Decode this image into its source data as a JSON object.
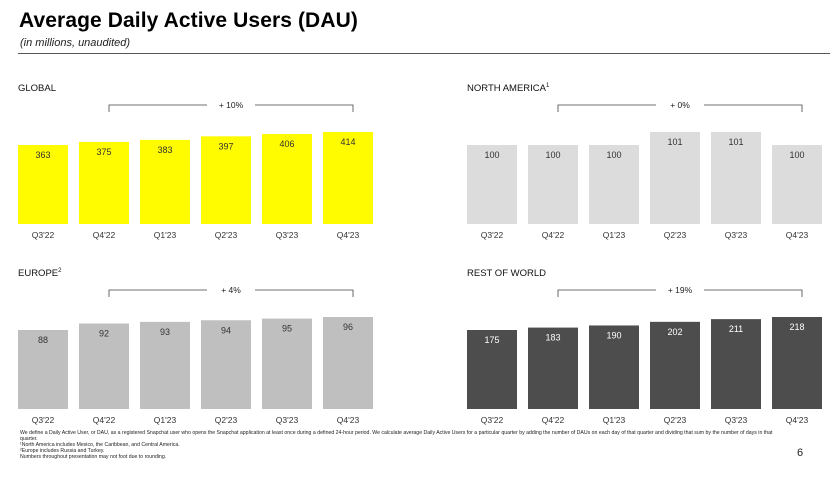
{
  "header": {
    "title": "Average Daily Active Users (DAU)",
    "subtitle": "(in millions, unaudited)"
  },
  "chart_data": [
    {
      "type": "bar",
      "title": "GLOBAL",
      "superscript": "",
      "categories": [
        "Q3'22",
        "Q4'22",
        "Q1'23",
        "Q2'23",
        "Q3'23",
        "Q4'23"
      ],
      "values": [
        363,
        375,
        383,
        397,
        406,
        414
      ],
      "growth_label": "+ 10%",
      "bar_color": "#FFFC00",
      "label_color": "#333333"
    },
    {
      "type": "bar",
      "title": "NORTH AMERICA",
      "superscript": "1",
      "categories": [
        "Q3'22",
        "Q4'22",
        "Q1'23",
        "Q2'23",
        "Q3'23",
        "Q4'23"
      ],
      "values": [
        100,
        100,
        100,
        101,
        101,
        100
      ],
      "growth_label": "+ 0%",
      "bar_color": "#DCDCDC",
      "label_color": "#333333"
    },
    {
      "type": "bar",
      "title": "EUROPE",
      "superscript": "2",
      "categories": [
        "Q3'22",
        "Q4'22",
        "Q1'23",
        "Q2'23",
        "Q3'23",
        "Q4'23"
      ],
      "values": [
        88,
        92,
        93,
        94,
        95,
        96
      ],
      "growth_label": "+ 4%",
      "bar_color": "#BFBFBF",
      "label_color": "#333333"
    },
    {
      "type": "bar",
      "title": "REST OF WORLD",
      "superscript": "",
      "categories": [
        "Q3'22",
        "Q4'22",
        "Q1'23",
        "Q2'23",
        "Q3'23",
        "Q4'23"
      ],
      "values": [
        175,
        183,
        190,
        202,
        211,
        218
      ],
      "growth_label": "+ 19%",
      "bar_color": "#4D4D4D",
      "label_color": "#FFFFFF"
    }
  ],
  "footnotes": [
    "We define a Daily Active User, or DAU, as a registered Snapchat user who opens the Snapchat application at least once during a defined 24-hour period. We calculate average Daily Active Users for a particular quarter by adding the number of DAUs on each day of that quarter and dividing that sum by the number of days in that quarter.",
    "¹North America includes Mexico, the Caribbean, and Central America.",
    "²Europe includes Russia and Turkey.",
    "Numbers throughout presentation may not foot due to rounding."
  ],
  "page_number": "6"
}
